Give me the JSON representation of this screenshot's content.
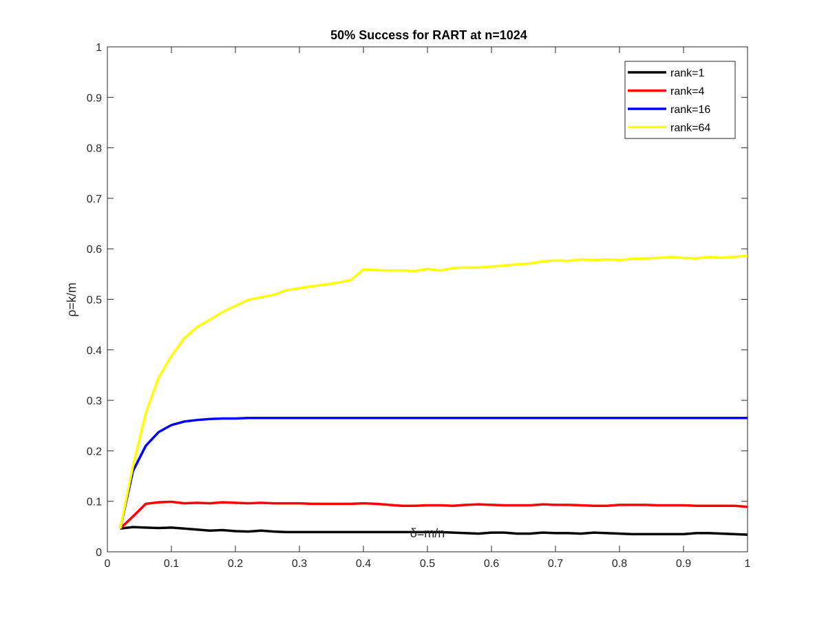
{
  "chart_data": {
    "type": "line",
    "title": "50% Success for RART at n=1024",
    "xlabel": "δ=m/n",
    "ylabel": "ρ=k/m",
    "xlim": [
      0,
      1
    ],
    "ylim": [
      0,
      1
    ],
    "xticks": [
      "0",
      "0.1",
      "0.2",
      "0.3",
      "0.4",
      "0.5",
      "0.6",
      "0.7",
      "0.8",
      "0.9",
      "1"
    ],
    "yticks": [
      "0",
      "0.1",
      "0.2",
      "0.3",
      "0.4",
      "0.5",
      "0.6",
      "0.7",
      "0.8",
      "0.9",
      "1"
    ],
    "grid": false,
    "legend_position": "top-right",
    "x": [
      0.02,
      0.04,
      0.06,
      0.08,
      0.1,
      0.12,
      0.14,
      0.16,
      0.18,
      0.2,
      0.22,
      0.24,
      0.26,
      0.28,
      0.3,
      0.32,
      0.34,
      0.36,
      0.38,
      0.4,
      0.42,
      0.44,
      0.46,
      0.48,
      0.5,
      0.52,
      0.54,
      0.56,
      0.58,
      0.6,
      0.62,
      0.64,
      0.66,
      0.68,
      0.7,
      0.72,
      0.74,
      0.76,
      0.78,
      0.8,
      0.82,
      0.84,
      0.86,
      0.88,
      0.9,
      0.92,
      0.94,
      0.96,
      0.98,
      1.0
    ],
    "series": [
      {
        "name": "rank=1",
        "color": "#000000",
        "values": [
          0.046,
          0.049,
          0.048,
          0.047,
          0.048,
          0.046,
          0.044,
          0.042,
          0.043,
          0.041,
          0.04,
          0.042,
          0.04,
          0.039,
          0.039,
          0.039,
          0.039,
          0.039,
          0.039,
          0.039,
          0.039,
          0.039,
          0.039,
          0.039,
          0.039,
          0.039,
          0.038,
          0.037,
          0.036,
          0.038,
          0.038,
          0.036,
          0.036,
          0.038,
          0.037,
          0.037,
          0.036,
          0.038,
          0.037,
          0.036,
          0.035,
          0.035,
          0.035,
          0.035,
          0.035,
          0.037,
          0.037,
          0.036,
          0.035,
          0.034
        ]
      },
      {
        "name": "rank=4",
        "color": "#ff0000",
        "values": [
          0.046,
          0.07,
          0.095,
          0.098,
          0.099,
          0.096,
          0.097,
          0.096,
          0.098,
          0.097,
          0.096,
          0.097,
          0.096,
          0.096,
          0.096,
          0.095,
          0.095,
          0.095,
          0.095,
          0.096,
          0.095,
          0.093,
          0.091,
          0.091,
          0.092,
          0.092,
          0.091,
          0.093,
          0.094,
          0.093,
          0.092,
          0.092,
          0.092,
          0.094,
          0.093,
          0.093,
          0.092,
          0.091,
          0.091,
          0.093,
          0.093,
          0.093,
          0.092,
          0.092,
          0.092,
          0.091,
          0.091,
          0.091,
          0.091,
          0.089
        ]
      },
      {
        "name": "rank=16",
        "color": "#0000ff",
        "values": [
          0.046,
          0.16,
          0.21,
          0.237,
          0.251,
          0.258,
          0.261,
          0.263,
          0.264,
          0.264,
          0.265,
          0.265,
          0.265,
          0.265,
          0.265,
          0.265,
          0.265,
          0.265,
          0.265,
          0.265,
          0.265,
          0.265,
          0.265,
          0.265,
          0.265,
          0.265,
          0.265,
          0.265,
          0.265,
          0.265,
          0.265,
          0.265,
          0.265,
          0.265,
          0.265,
          0.265,
          0.265,
          0.265,
          0.265,
          0.265,
          0.265,
          0.265,
          0.265,
          0.265,
          0.265,
          0.265,
          0.265,
          0.265,
          0.265,
          0.265
        ]
      },
      {
        "name": "rank=64",
        "color": "#ffff00",
        "values": [
          0.046,
          0.17,
          0.275,
          0.345,
          0.388,
          0.423,
          0.445,
          0.46,
          0.475,
          0.487,
          0.499,
          0.504,
          0.509,
          0.518,
          0.522,
          0.526,
          0.529,
          0.533,
          0.538,
          0.559,
          0.558,
          0.557,
          0.557,
          0.556,
          0.56,
          0.557,
          0.562,
          0.563,
          0.563,
          0.565,
          0.567,
          0.569,
          0.571,
          0.575,
          0.577,
          0.576,
          0.579,
          0.578,
          0.579,
          0.578,
          0.58,
          0.581,
          0.582,
          0.583,
          0.582,
          0.581,
          0.584,
          0.582,
          0.584,
          0.586
        ]
      }
    ]
  }
}
